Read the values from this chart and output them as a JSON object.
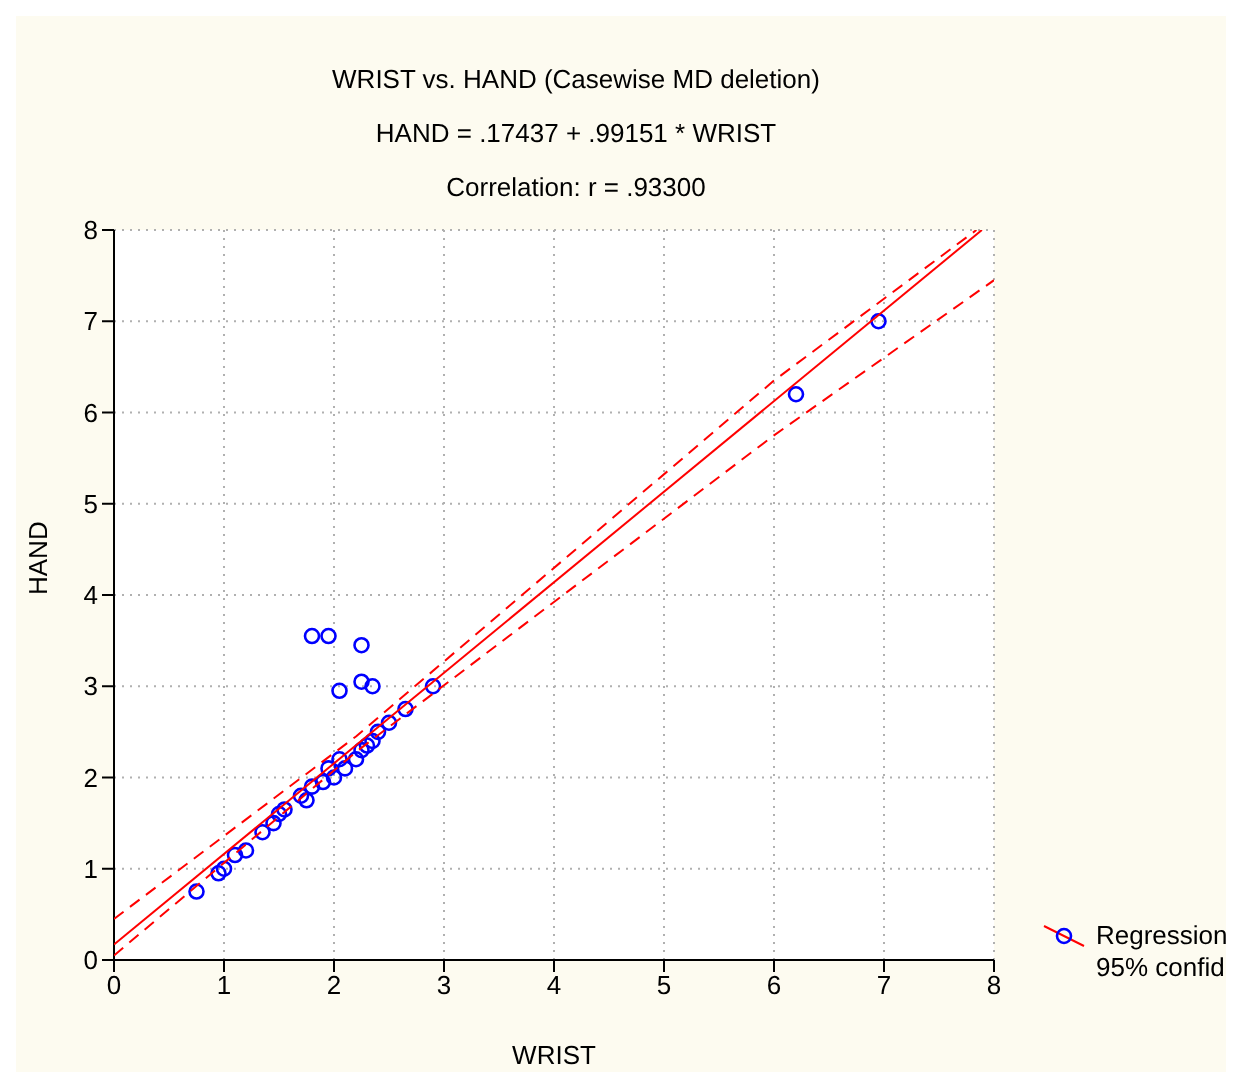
{
  "chart_data": {
    "type": "scatter",
    "title": "WRIST vs. HAND (Casewise MD deletion)",
    "subtitle": "HAND = .17437 + .99151 * WRIST",
    "annotations": [
      "Correlation: r = .93300"
    ],
    "xlabel": "WRIST",
    "ylabel": "HAND",
    "xlim": [
      0,
      8
    ],
    "ylim": [
      0,
      8
    ],
    "xticks": [
      0,
      1,
      2,
      3,
      4,
      5,
      6,
      7,
      8
    ],
    "yticks": [
      0,
      1,
      2,
      3,
      4,
      5,
      6,
      7,
      8
    ],
    "grid": true,
    "legend": "bottom right",
    "series": [
      {
        "color": "#0000ff",
        "marker": "circle",
        "x": [
          0.75,
          0.95,
          1.0,
          1.1,
          1.2,
          1.35,
          1.45,
          1.5,
          1.55,
          1.7,
          1.75,
          1.8,
          1.9,
          1.95,
          2.0,
          2.05,
          2.1,
          2.2,
          2.25,
          2.3,
          2.35,
          2.4,
          2.5,
          2.65,
          2.9,
          1.8,
          1.95,
          2.25,
          2.05,
          2.25,
          2.35,
          6.2,
          6.95
        ],
        "values": [
          0.75,
          0.95,
          1.0,
          1.15,
          1.2,
          1.4,
          1.5,
          1.6,
          1.65,
          1.8,
          1.75,
          1.9,
          1.95,
          2.1,
          2.0,
          2.2,
          2.1,
          2.2,
          2.3,
          2.35,
          2.4,
          2.5,
          2.6,
          2.75,
          3.0,
          3.55,
          3.55,
          3.45,
          2.95,
          3.05,
          3.0,
          6.2,
          7.0
        ]
      },
      {
        "type": "line",
        "name": "Regression",
        "color": "#ff0000",
        "line_style": "solid",
        "marker": "none",
        "x": [
          0,
          7.89
        ],
        "values": [
          0.17,
          8
        ]
      },
      {
        "type": "line",
        "name": "95% confid",
        "color": "#ff0000",
        "line_style": "dashed",
        "marker": "none",
        "x": [
          0,
          2.2,
          6,
          7.84
        ],
        "values": [
          0.45,
          2.45,
          6.35,
          8
        ]
      },
      {
        "type": "line",
        "color": "#ff0000",
        "line_style": "dashed",
        "marker": "none",
        "x": [
          0,
          2.2,
          6,
          8
        ],
        "values": [
          0.05,
          2.28,
          5.75,
          7.45
        ]
      }
    ]
  }
}
